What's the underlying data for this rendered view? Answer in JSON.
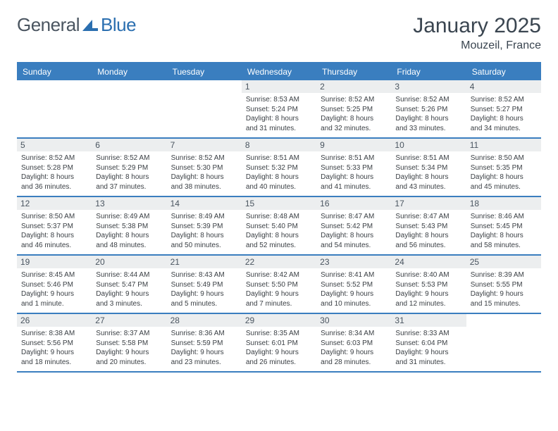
{
  "brand": {
    "part1": "General",
    "part2": "Blue"
  },
  "title": "January 2025",
  "location": "Mouzeil, France",
  "colors": {
    "header_bar": "#3a7ebf",
    "daynum_bg": "#eceeef",
    "text": "#3a4550",
    "info_text": "#3a3f44",
    "brand_gray": "#4a5560",
    "brand_blue": "#2b6fb0"
  },
  "weekdays": [
    "Sunday",
    "Monday",
    "Tuesday",
    "Wednesday",
    "Thursday",
    "Friday",
    "Saturday"
  ],
  "weeks": [
    [
      {
        "n": "",
        "sr": "",
        "ss": "",
        "dl": ""
      },
      {
        "n": "",
        "sr": "",
        "ss": "",
        "dl": ""
      },
      {
        "n": "",
        "sr": "",
        "ss": "",
        "dl": ""
      },
      {
        "n": "1",
        "sr": "Sunrise: 8:53 AM",
        "ss": "Sunset: 5:24 PM",
        "dl": "Daylight: 8 hours and 31 minutes."
      },
      {
        "n": "2",
        "sr": "Sunrise: 8:52 AM",
        "ss": "Sunset: 5:25 PM",
        "dl": "Daylight: 8 hours and 32 minutes."
      },
      {
        "n": "3",
        "sr": "Sunrise: 8:52 AM",
        "ss": "Sunset: 5:26 PM",
        "dl": "Daylight: 8 hours and 33 minutes."
      },
      {
        "n": "4",
        "sr": "Sunrise: 8:52 AM",
        "ss": "Sunset: 5:27 PM",
        "dl": "Daylight: 8 hours and 34 minutes."
      }
    ],
    [
      {
        "n": "5",
        "sr": "Sunrise: 8:52 AM",
        "ss": "Sunset: 5:28 PM",
        "dl": "Daylight: 8 hours and 36 minutes."
      },
      {
        "n": "6",
        "sr": "Sunrise: 8:52 AM",
        "ss": "Sunset: 5:29 PM",
        "dl": "Daylight: 8 hours and 37 minutes."
      },
      {
        "n": "7",
        "sr": "Sunrise: 8:52 AM",
        "ss": "Sunset: 5:30 PM",
        "dl": "Daylight: 8 hours and 38 minutes."
      },
      {
        "n": "8",
        "sr": "Sunrise: 8:51 AM",
        "ss": "Sunset: 5:32 PM",
        "dl": "Daylight: 8 hours and 40 minutes."
      },
      {
        "n": "9",
        "sr": "Sunrise: 8:51 AM",
        "ss": "Sunset: 5:33 PM",
        "dl": "Daylight: 8 hours and 41 minutes."
      },
      {
        "n": "10",
        "sr": "Sunrise: 8:51 AM",
        "ss": "Sunset: 5:34 PM",
        "dl": "Daylight: 8 hours and 43 minutes."
      },
      {
        "n": "11",
        "sr": "Sunrise: 8:50 AM",
        "ss": "Sunset: 5:35 PM",
        "dl": "Daylight: 8 hours and 45 minutes."
      }
    ],
    [
      {
        "n": "12",
        "sr": "Sunrise: 8:50 AM",
        "ss": "Sunset: 5:37 PM",
        "dl": "Daylight: 8 hours and 46 minutes."
      },
      {
        "n": "13",
        "sr": "Sunrise: 8:49 AM",
        "ss": "Sunset: 5:38 PM",
        "dl": "Daylight: 8 hours and 48 minutes."
      },
      {
        "n": "14",
        "sr": "Sunrise: 8:49 AM",
        "ss": "Sunset: 5:39 PM",
        "dl": "Daylight: 8 hours and 50 minutes."
      },
      {
        "n": "15",
        "sr": "Sunrise: 8:48 AM",
        "ss": "Sunset: 5:40 PM",
        "dl": "Daylight: 8 hours and 52 minutes."
      },
      {
        "n": "16",
        "sr": "Sunrise: 8:47 AM",
        "ss": "Sunset: 5:42 PM",
        "dl": "Daylight: 8 hours and 54 minutes."
      },
      {
        "n": "17",
        "sr": "Sunrise: 8:47 AM",
        "ss": "Sunset: 5:43 PM",
        "dl": "Daylight: 8 hours and 56 minutes."
      },
      {
        "n": "18",
        "sr": "Sunrise: 8:46 AM",
        "ss": "Sunset: 5:45 PM",
        "dl": "Daylight: 8 hours and 58 minutes."
      }
    ],
    [
      {
        "n": "19",
        "sr": "Sunrise: 8:45 AM",
        "ss": "Sunset: 5:46 PM",
        "dl": "Daylight: 9 hours and 1 minute."
      },
      {
        "n": "20",
        "sr": "Sunrise: 8:44 AM",
        "ss": "Sunset: 5:47 PM",
        "dl": "Daylight: 9 hours and 3 minutes."
      },
      {
        "n": "21",
        "sr": "Sunrise: 8:43 AM",
        "ss": "Sunset: 5:49 PM",
        "dl": "Daylight: 9 hours and 5 minutes."
      },
      {
        "n": "22",
        "sr": "Sunrise: 8:42 AM",
        "ss": "Sunset: 5:50 PM",
        "dl": "Daylight: 9 hours and 7 minutes."
      },
      {
        "n": "23",
        "sr": "Sunrise: 8:41 AM",
        "ss": "Sunset: 5:52 PM",
        "dl": "Daylight: 9 hours and 10 minutes."
      },
      {
        "n": "24",
        "sr": "Sunrise: 8:40 AM",
        "ss": "Sunset: 5:53 PM",
        "dl": "Daylight: 9 hours and 12 minutes."
      },
      {
        "n": "25",
        "sr": "Sunrise: 8:39 AM",
        "ss": "Sunset: 5:55 PM",
        "dl": "Daylight: 9 hours and 15 minutes."
      }
    ],
    [
      {
        "n": "26",
        "sr": "Sunrise: 8:38 AM",
        "ss": "Sunset: 5:56 PM",
        "dl": "Daylight: 9 hours and 18 minutes."
      },
      {
        "n": "27",
        "sr": "Sunrise: 8:37 AM",
        "ss": "Sunset: 5:58 PM",
        "dl": "Daylight: 9 hours and 20 minutes."
      },
      {
        "n": "28",
        "sr": "Sunrise: 8:36 AM",
        "ss": "Sunset: 5:59 PM",
        "dl": "Daylight: 9 hours and 23 minutes."
      },
      {
        "n": "29",
        "sr": "Sunrise: 8:35 AM",
        "ss": "Sunset: 6:01 PM",
        "dl": "Daylight: 9 hours and 26 minutes."
      },
      {
        "n": "30",
        "sr": "Sunrise: 8:34 AM",
        "ss": "Sunset: 6:03 PM",
        "dl": "Daylight: 9 hours and 28 minutes."
      },
      {
        "n": "31",
        "sr": "Sunrise: 8:33 AM",
        "ss": "Sunset: 6:04 PM",
        "dl": "Daylight: 9 hours and 31 minutes."
      },
      {
        "n": "",
        "sr": "",
        "ss": "",
        "dl": ""
      }
    ]
  ]
}
